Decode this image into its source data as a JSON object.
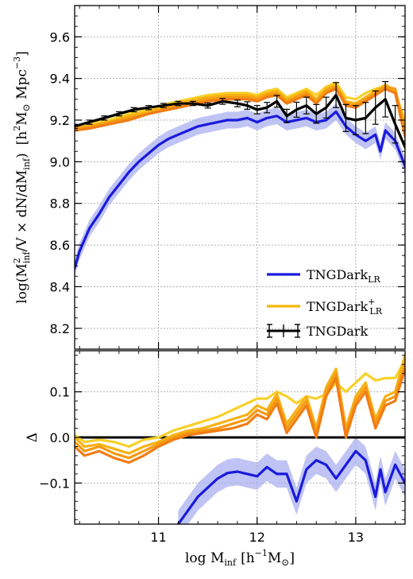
{
  "chart_data": [
    {
      "type": "line",
      "panel": "top",
      "ylabel": "log(M²_inf / V × dN/dM_inf)  [h²M⊙ Mpc⁻³]",
      "ylabel_parts": {
        "main": "log(M",
        "sup2": "2",
        "sub_inf": "inf",
        "mid": "/V × dN/dM",
        "sub_inf2": "inf",
        "close": ")",
        "unit_open": "[h",
        "unit_sup2": "2",
        "unit_msun": "M",
        "unit_sun": "⊙",
        "unit_mpc": " Mpc",
        "unit_exp": "−3",
        "unit_close": "]"
      },
      "xlim": [
        10.15,
        13.5
      ],
      "ylim": [
        8.1,
        9.75
      ],
      "grid": true,
      "yticks": [
        8.2,
        8.4,
        8.6,
        8.8,
        9.0,
        9.2,
        9.4,
        9.6
      ],
      "ytick_labels": [
        "8.2",
        "8.4",
        "8.6",
        "8.8",
        "9.0",
        "9.2",
        "9.4",
        "9.6"
      ],
      "legend": {
        "placement": "bottom-right",
        "entries": [
          {
            "name": "TNGDark",
            "sub": "LR",
            "sup": "",
            "color": "#1a1adc"
          },
          {
            "name": "TNGDark",
            "sub": "LR",
            "sup": "+",
            "color": "#f5b800"
          },
          {
            "name": "TNGDark",
            "sub": "",
            "sup": "",
            "color": "#000000"
          }
        ]
      },
      "series": [
        {
          "name": "TNGDark",
          "color": "#000000",
          "x": [
            10.15,
            10.3,
            10.45,
            10.6,
            10.75,
            10.9,
            11.05,
            11.2,
            11.35,
            11.5,
            11.65,
            11.8,
            11.9,
            12.0,
            12.1,
            12.2,
            12.3,
            12.4,
            12.5,
            12.6,
            12.7,
            12.8,
            12.9,
            13.0,
            13.1,
            13.2,
            13.3,
            13.4,
            13.5
          ],
          "y": [
            9.17,
            9.19,
            9.21,
            9.23,
            9.25,
            9.26,
            9.27,
            9.28,
            9.28,
            9.27,
            9.29,
            9.28,
            9.27,
            9.25,
            9.26,
            9.29,
            9.22,
            9.25,
            9.27,
            9.23,
            9.26,
            9.32,
            9.21,
            9.2,
            9.21,
            9.26,
            9.3,
            9.18,
            9.07
          ],
          "err": [
            0.01,
            0.01,
            0.01,
            0.01,
            0.01,
            0.01,
            0.01,
            0.01,
            0.01,
            0.012,
            0.014,
            0.016,
            0.018,
            0.02,
            0.025,
            0.028,
            0.032,
            0.036,
            0.04,
            0.045,
            0.05,
            0.06,
            0.065,
            0.07,
            0.075,
            0.08,
            0.085,
            0.09,
            0.1
          ]
        },
        {
          "name": "TNGDark LR",
          "color": "#1a1adc",
          "band_color": "#aab0f0",
          "band": 0.04,
          "x": [
            10.15,
            10.2,
            10.3,
            10.4,
            10.5,
            10.6,
            10.7,
            10.8,
            10.9,
            11.0,
            11.1,
            11.2,
            11.3,
            11.4,
            11.5,
            11.6,
            11.7,
            11.8,
            11.9,
            12.0,
            12.1,
            12.2,
            12.3,
            12.4,
            12.5,
            12.6,
            12.7,
            12.8,
            12.9,
            13.0,
            13.1,
            13.2,
            13.25,
            13.3,
            13.4,
            13.5
          ],
          "y": [
            8.49,
            8.57,
            8.68,
            8.75,
            8.83,
            8.89,
            8.95,
            9.0,
            9.04,
            9.08,
            9.11,
            9.13,
            9.15,
            9.17,
            9.18,
            9.19,
            9.2,
            9.2,
            9.21,
            9.19,
            9.21,
            9.22,
            9.19,
            9.2,
            9.21,
            9.19,
            9.2,
            9.24,
            9.17,
            9.13,
            9.1,
            9.13,
            9.05,
            9.15,
            9.1,
            8.98
          ]
        },
        {
          "name": "TNGDark LR+ (1)",
          "color": "#f9d02a",
          "x": [
            10.15,
            10.3,
            10.5,
            10.7,
            10.9,
            11.1,
            11.3,
            11.5,
            11.7,
            11.9,
            12.0,
            12.1,
            12.2,
            12.3,
            12.4,
            12.5,
            12.6,
            12.7,
            12.8,
            12.9,
            13.0,
            13.1,
            13.2,
            13.3,
            13.4,
            13.5
          ],
          "y": [
            9.16,
            9.18,
            9.2,
            9.23,
            9.25,
            9.28,
            9.3,
            9.32,
            9.33,
            9.33,
            9.32,
            9.34,
            9.35,
            9.31,
            9.33,
            9.35,
            9.32,
            9.36,
            9.38,
            9.31,
            9.3,
            9.33,
            9.35,
            9.36,
            9.33,
            9.2
          ]
        },
        {
          "name": "TNGDark LR+ (2)",
          "color": "#f7b214",
          "x": [
            10.15,
            10.3,
            10.5,
            10.7,
            10.9,
            11.1,
            11.3,
            11.5,
            11.7,
            11.9,
            12.0,
            12.1,
            12.2,
            12.3,
            12.4,
            12.5,
            12.6,
            12.7,
            12.8,
            12.9,
            13.0,
            13.1,
            13.2,
            13.3,
            13.4,
            13.5
          ],
          "y": [
            9.15,
            9.17,
            9.19,
            9.22,
            9.24,
            9.27,
            9.29,
            9.31,
            9.32,
            9.32,
            9.31,
            9.33,
            9.34,
            9.3,
            9.32,
            9.34,
            9.3,
            9.35,
            9.37,
            9.29,
            9.28,
            9.31,
            9.34,
            9.37,
            9.34,
            9.17
          ]
        },
        {
          "name": "TNGDark LR+ (3)",
          "color": "#f59a12",
          "x": [
            10.15,
            10.3,
            10.5,
            10.7,
            10.9,
            11.1,
            11.3,
            11.5,
            11.7,
            11.9,
            12.0,
            12.1,
            12.2,
            12.3,
            12.4,
            12.5,
            12.6,
            12.7,
            12.8,
            12.9,
            13.0,
            13.1,
            13.2,
            13.3,
            13.4,
            13.5
          ],
          "y": [
            9.16,
            9.17,
            9.19,
            9.21,
            9.23,
            9.26,
            9.28,
            9.3,
            9.31,
            9.31,
            9.3,
            9.32,
            9.33,
            9.29,
            9.31,
            9.33,
            9.29,
            9.34,
            9.36,
            9.28,
            9.27,
            9.3,
            9.33,
            9.36,
            9.35,
            9.15
          ]
        },
        {
          "name": "TNGDark LR+ (4)",
          "color": "#f07d14",
          "x": [
            10.15,
            10.3,
            10.5,
            10.7,
            10.9,
            11.1,
            11.3,
            11.5,
            11.7,
            11.9,
            12.0,
            12.1,
            12.2,
            12.3,
            12.4,
            12.5,
            12.6,
            12.7,
            12.8,
            12.9,
            13.0,
            13.1,
            13.2,
            13.3,
            13.4,
            13.5
          ],
          "y": [
            9.15,
            9.16,
            9.18,
            9.2,
            9.23,
            9.25,
            9.27,
            9.29,
            9.3,
            9.3,
            9.29,
            9.31,
            9.32,
            9.28,
            9.3,
            9.32,
            9.28,
            9.33,
            9.35,
            9.27,
            9.26,
            9.29,
            9.32,
            9.35,
            9.33,
            9.12
          ]
        }
      ]
    },
    {
      "type": "line",
      "panel": "bottom",
      "xlabel": "log M_inf [h⁻¹M⊙]",
      "xlabel_parts": {
        "main": "log M",
        "sub": "inf",
        "unit_open": "[h",
        "unit_exp": "−1",
        "unit_msun": "M",
        "unit_sun": "⊙",
        "unit_close": "]"
      },
      "ylabel": "Δ",
      "xlim": [
        10.15,
        13.5
      ],
      "ylim": [
        -0.19,
        0.19
      ],
      "grid": true,
      "xticks": [
        11,
        12,
        13
      ],
      "xtick_labels": [
        "11",
        "12",
        "13"
      ],
      "yticks": [
        -0.1,
        0.0,
        0.1
      ],
      "ytick_labels": [
        "−0.1",
        "0.0",
        "0.1"
      ],
      "zero_line": {
        "y": 0.0,
        "color": "#000000"
      },
      "series": [
        {
          "name": "TNGDark LR",
          "color": "#1a1adc",
          "band_color": "#aab0f0",
          "band": 0.03,
          "x": [
            11.2,
            11.3,
            11.4,
            11.5,
            11.6,
            11.7,
            11.8,
            11.9,
            12.0,
            12.1,
            12.2,
            12.3,
            12.4,
            12.5,
            12.6,
            12.7,
            12.8,
            12.9,
            13.0,
            13.1,
            13.2,
            13.25,
            13.3,
            13.4,
            13.5
          ],
          "y": [
            -0.19,
            -0.16,
            -0.13,
            -0.11,
            -0.09,
            -0.078,
            -0.075,
            -0.08,
            -0.085,
            -0.065,
            -0.08,
            -0.08,
            -0.14,
            -0.07,
            -0.05,
            -0.06,
            -0.09,
            -0.06,
            -0.03,
            -0.05,
            -0.13,
            -0.07,
            -0.12,
            -0.06,
            -0.1
          ]
        },
        {
          "name": "TNGDark LR+ (1)",
          "color": "#f9d02a",
          "x": [
            10.15,
            10.25,
            10.4,
            10.55,
            10.7,
            10.85,
            11.0,
            11.15,
            11.3,
            11.45,
            11.6,
            11.75,
            11.9,
            12.0,
            12.1,
            12.2,
            12.3,
            12.4,
            12.5,
            12.6,
            12.7,
            12.8,
            12.9,
            13.0,
            13.1,
            13.2,
            13.3,
            13.4,
            13.5
          ],
          "y": [
            0.005,
            -0.01,
            -0.005,
            -0.01,
            -0.02,
            -0.005,
            0.0,
            0.015,
            0.025,
            0.035,
            0.045,
            0.06,
            0.075,
            0.085,
            0.085,
            0.1,
            0.09,
            0.075,
            0.09,
            0.085,
            0.095,
            0.12,
            0.1,
            0.12,
            0.14,
            0.125,
            0.13,
            0.13,
            0.17
          ]
        },
        {
          "name": "TNGDark LR+ (2)",
          "color": "#f7b214",
          "x": [
            10.15,
            10.25,
            10.4,
            10.55,
            10.7,
            10.85,
            11.0,
            11.15,
            11.3,
            11.45,
            11.6,
            11.75,
            11.9,
            12.0,
            12.1,
            12.2,
            12.3,
            12.4,
            12.5,
            12.6,
            12.7,
            12.8,
            12.9,
            13.0,
            13.1,
            13.2,
            13.3,
            13.4,
            13.5
          ],
          "y": [
            0.0,
            -0.02,
            -0.015,
            -0.025,
            -0.035,
            -0.02,
            -0.01,
            0.005,
            0.015,
            0.02,
            0.03,
            0.04,
            0.05,
            0.07,
            0.06,
            0.095,
            0.03,
            0.06,
            0.09,
            0.02,
            0.11,
            0.15,
            0.02,
            0.09,
            0.12,
            0.04,
            0.09,
            0.1,
            0.18
          ]
        },
        {
          "name": "TNGDark LR+ (3)",
          "color": "#f59a12",
          "x": [
            10.15,
            10.25,
            10.4,
            10.55,
            10.7,
            10.85,
            11.0,
            11.15,
            11.3,
            11.45,
            11.6,
            11.75,
            11.9,
            12.0,
            12.1,
            12.2,
            12.3,
            12.4,
            12.5,
            12.6,
            12.7,
            12.8,
            12.9,
            13.0,
            13.1,
            13.2,
            13.3,
            13.4,
            13.5
          ],
          "y": [
            -0.01,
            -0.03,
            -0.02,
            -0.035,
            -0.045,
            -0.03,
            -0.015,
            0.0,
            0.01,
            0.015,
            0.02,
            0.03,
            0.04,
            0.06,
            0.05,
            0.085,
            0.02,
            0.05,
            0.08,
            0.01,
            0.1,
            0.14,
            0.01,
            0.08,
            0.11,
            0.03,
            0.08,
            0.09,
            0.16
          ]
        },
        {
          "name": "TNGDark LR+ (4)",
          "color": "#f07d14",
          "x": [
            10.15,
            10.25,
            10.4,
            10.55,
            10.7,
            10.85,
            11.0,
            11.15,
            11.3,
            11.45,
            11.6,
            11.75,
            11.9,
            12.0,
            12.1,
            12.2,
            12.3,
            12.4,
            12.5,
            12.6,
            12.7,
            12.8,
            12.9,
            13.0,
            13.1,
            13.2,
            13.3,
            13.4,
            13.5
          ],
          "y": [
            -0.02,
            -0.04,
            -0.03,
            -0.045,
            -0.055,
            -0.04,
            -0.02,
            -0.005,
            0.005,
            0.01,
            0.015,
            0.02,
            0.03,
            0.05,
            0.04,
            0.075,
            0.01,
            0.04,
            0.07,
            0.0,
            0.09,
            0.13,
            0.0,
            0.07,
            0.1,
            0.02,
            0.07,
            0.08,
            0.15
          ]
        }
      ]
    }
  ]
}
